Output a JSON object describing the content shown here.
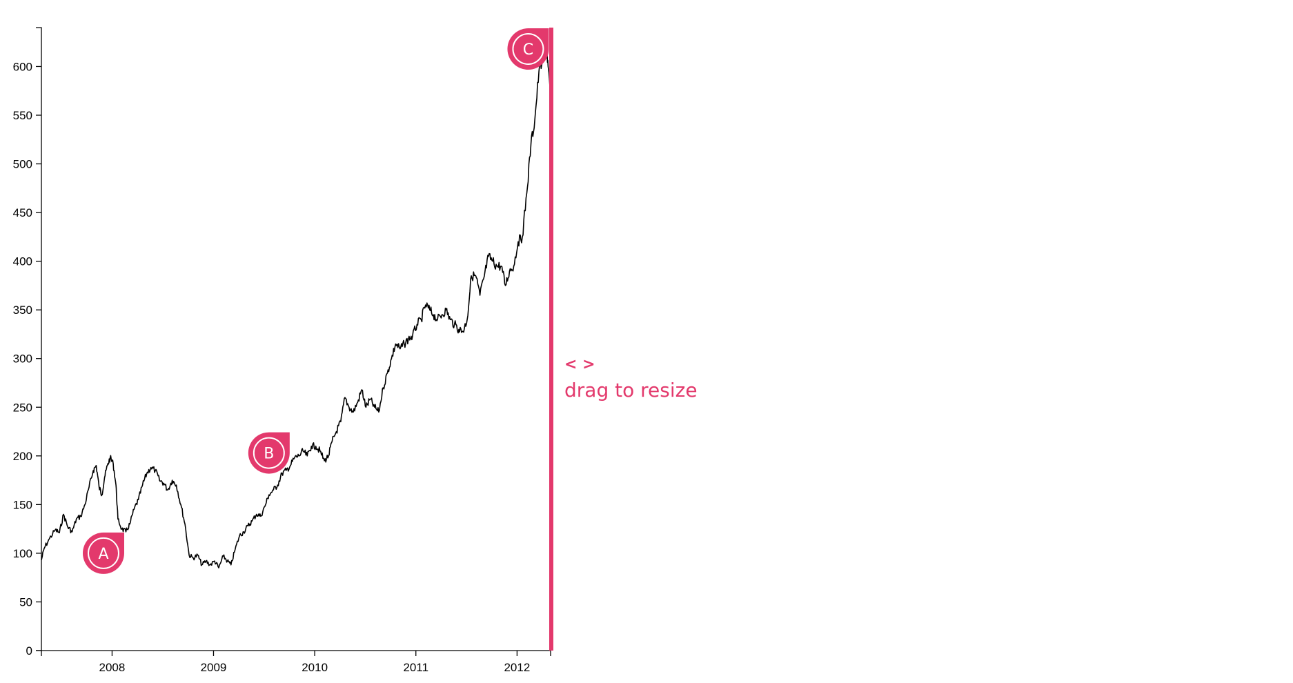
{
  "chart_data": {
    "type": "line",
    "title": "",
    "xlabel": "",
    "ylabel": "",
    "ylim": [
      0,
      640
    ],
    "xlim": [
      "2007-04-21",
      "2012-05-01"
    ],
    "x_ticks": [
      "2008",
      "2009",
      "2010",
      "2011",
      "2012"
    ],
    "y_ticks": [
      "0",
      "50",
      "100",
      "150",
      "200",
      "250",
      "300",
      "350",
      "400",
      "450",
      "500",
      "550",
      "600"
    ],
    "grid": false,
    "series": [
      {
        "name": "",
        "color": "#000000",
        "points": [
          [
            "2007-04-21",
            93
          ],
          [
            "2007-05-01",
            105
          ],
          [
            "2007-05-20",
            115
          ],
          [
            "2007-06-10",
            124
          ],
          [
            "2007-06-25",
            121
          ],
          [
            "2007-07-10",
            140
          ],
          [
            "2007-07-25",
            127
          ],
          [
            "2007-08-10",
            122
          ],
          [
            "2007-08-25",
            135
          ],
          [
            "2007-09-10",
            138
          ],
          [
            "2007-09-25",
            150
          ],
          [
            "2007-10-10",
            168
          ],
          [
            "2007-10-25",
            185
          ],
          [
            "2007-11-05",
            190
          ],
          [
            "2007-11-15",
            168
          ],
          [
            "2007-11-25",
            160
          ],
          [
            "2007-12-05",
            178
          ],
          [
            "2007-12-15",
            190
          ],
          [
            "2007-12-25",
            198
          ],
          [
            "2008-01-05",
            192
          ],
          [
            "2008-01-15",
            170
          ],
          [
            "2008-01-22",
            135
          ],
          [
            "2008-02-05",
            125
          ],
          [
            "2008-02-20",
            122
          ],
          [
            "2008-03-05",
            130
          ],
          [
            "2008-03-20",
            145
          ],
          [
            "2008-04-05",
            155
          ],
          [
            "2008-04-20",
            170
          ],
          [
            "2008-05-05",
            182
          ],
          [
            "2008-05-20",
            188
          ],
          [
            "2008-06-05",
            185
          ],
          [
            "2008-06-20",
            175
          ],
          [
            "2008-07-05",
            172
          ],
          [
            "2008-07-20",
            165
          ],
          [
            "2008-08-05",
            175
          ],
          [
            "2008-08-20",
            170
          ],
          [
            "2008-09-05",
            150
          ],
          [
            "2008-09-20",
            130
          ],
          [
            "2008-10-05",
            98
          ],
          [
            "2008-10-20",
            95
          ],
          [
            "2008-11-05",
            98
          ],
          [
            "2008-11-20",
            88
          ],
          [
            "2008-12-05",
            92
          ],
          [
            "2008-12-20",
            88
          ],
          [
            "2009-01-05",
            92
          ],
          [
            "2009-01-20",
            85
          ],
          [
            "2009-02-05",
            97
          ],
          [
            "2009-02-20",
            92
          ],
          [
            "2009-03-05",
            88
          ],
          [
            "2009-03-20",
            104
          ],
          [
            "2009-04-05",
            118
          ],
          [
            "2009-04-20",
            122
          ],
          [
            "2009-05-05",
            128
          ],
          [
            "2009-05-20",
            133
          ],
          [
            "2009-06-05",
            140
          ],
          [
            "2009-06-20",
            138
          ],
          [
            "2009-07-05",
            148
          ],
          [
            "2009-07-20",
            160
          ],
          [
            "2009-08-05",
            165
          ],
          [
            "2009-08-20",
            170
          ],
          [
            "2009-09-05",
            182
          ],
          [
            "2009-09-20",
            185
          ],
          [
            "2009-10-05",
            190
          ],
          [
            "2009-10-20",
            198
          ],
          [
            "2009-11-05",
            200
          ],
          [
            "2009-11-20",
            205
          ],
          [
            "2009-12-05",
            200
          ],
          [
            "2009-12-20",
            210
          ],
          [
            "2010-01-05",
            210
          ],
          [
            "2010-01-20",
            205
          ],
          [
            "2010-02-05",
            195
          ],
          [
            "2010-02-20",
            200
          ],
          [
            "2010-03-05",
            215
          ],
          [
            "2010-03-20",
            225
          ],
          [
            "2010-04-05",
            235
          ],
          [
            "2010-04-20",
            260
          ],
          [
            "2010-05-05",
            250
          ],
          [
            "2010-05-20",
            245
          ],
          [
            "2010-06-05",
            255
          ],
          [
            "2010-06-20",
            268
          ],
          [
            "2010-07-05",
            250
          ],
          [
            "2010-07-20",
            258
          ],
          [
            "2010-08-05",
            250
          ],
          [
            "2010-08-20",
            245
          ],
          [
            "2010-09-05",
            270
          ],
          [
            "2010-09-20",
            285
          ],
          [
            "2010-10-05",
            300
          ],
          [
            "2010-10-20",
            315
          ],
          [
            "2010-11-05",
            310
          ],
          [
            "2010-11-20",
            315
          ],
          [
            "2010-12-05",
            320
          ],
          [
            "2010-12-20",
            323
          ],
          [
            "2011-01-05",
            335
          ],
          [
            "2011-01-20",
            340
          ],
          [
            "2011-02-05",
            355
          ],
          [
            "2011-02-20",
            350
          ],
          [
            "2011-03-05",
            345
          ],
          [
            "2011-03-20",
            340
          ],
          [
            "2011-04-05",
            345
          ],
          [
            "2011-04-20",
            350
          ],
          [
            "2011-05-05",
            340
          ],
          [
            "2011-05-20",
            335
          ],
          [
            "2011-06-05",
            330
          ],
          [
            "2011-06-20",
            328
          ],
          [
            "2011-07-05",
            340
          ],
          [
            "2011-07-20",
            385
          ],
          [
            "2011-08-05",
            385
          ],
          [
            "2011-08-20",
            365
          ],
          [
            "2011-09-05",
            385
          ],
          [
            "2011-09-20",
            405
          ],
          [
            "2011-10-05",
            400
          ],
          [
            "2011-10-20",
            395
          ],
          [
            "2011-11-05",
            395
          ],
          [
            "2011-11-20",
            375
          ],
          [
            "2011-12-05",
            390
          ],
          [
            "2011-12-20",
            395
          ],
          [
            "2012-01-05",
            420
          ],
          [
            "2012-01-20",
            425
          ],
          [
            "2012-02-05",
            470
          ],
          [
            "2012-02-20",
            520
          ],
          [
            "2012-03-05",
            545
          ],
          [
            "2012-03-20",
            595
          ],
          [
            "2012-04-05",
            610
          ],
          [
            "2012-04-15",
            625
          ],
          [
            "2012-04-22",
            600
          ],
          [
            "2012-05-01",
            565
          ]
        ]
      }
    ],
    "annotations": [
      {
        "label": "A",
        "x": "2007-12-01",
        "y": 100
      },
      {
        "label": "B",
        "x": "2009-07-20",
        "y": 203
      },
      {
        "label": "C",
        "x": "2012-02-10",
        "y": 618
      }
    ]
  },
  "hint": {
    "arrows": "< >",
    "text": "drag to resize"
  },
  "colors": {
    "accent": "#e3396c",
    "line": "#000000",
    "axis": "#000000"
  }
}
